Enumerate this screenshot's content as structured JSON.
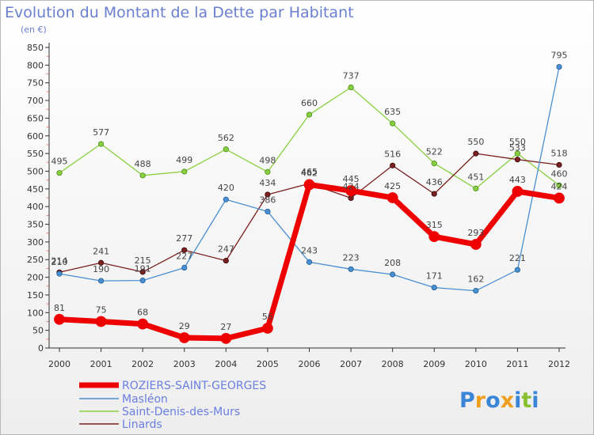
{
  "chart_data": {
    "type": "line",
    "title": "Evolution du Montant de la Dette par Habitant",
    "subtitle": "(en €)",
    "x": [
      "2000",
      "2001",
      "2002",
      "2003",
      "2004",
      "2005",
      "2006",
      "2007",
      "2008",
      "2009",
      "2010",
      "2011",
      "2012"
    ],
    "ylim": [
      0,
      850
    ],
    "yticks": [
      0,
      50,
      100,
      150,
      200,
      250,
      300,
      350,
      400,
      450,
      500,
      550,
      600,
      650,
      700,
      750,
      800,
      850
    ],
    "grid": false,
    "legend_position": "bottom-left",
    "series": [
      {
        "name": "ROZIERS-SAINT-GEORGES",
        "color": "#ee0000",
        "values": [
          81,
          75,
          68,
          29,
          27,
          56,
          462,
          445,
          425,
          315,
          293,
          443,
          424
        ]
      },
      {
        "name": "Masléon",
        "color": "#4a8fd0",
        "values": [
          210,
          190,
          191,
          227,
          420,
          386,
          243,
          223,
          208,
          171,
          162,
          221,
          795
        ]
      },
      {
        "name": "Saint-Denis-des-Murs",
        "color": "#88d040",
        "values": [
          495,
          577,
          488,
          499,
          562,
          498,
          660,
          737,
          635,
          522,
          451,
          550,
          460
        ]
      },
      {
        "name": "Linards",
        "color": "#7a2020",
        "values": [
          214,
          241,
          215,
          277,
          247,
          434,
          465,
          424,
          516,
          436,
          550,
          533,
          518
        ]
      }
    ]
  },
  "logo": {
    "text": "Proxiti",
    "colors": [
      "#3a86d6",
      "#f0a020",
      "#3a86d6",
      "#f0a020",
      "#3a86d6",
      "#88c030",
      "#3a86d6"
    ]
  }
}
